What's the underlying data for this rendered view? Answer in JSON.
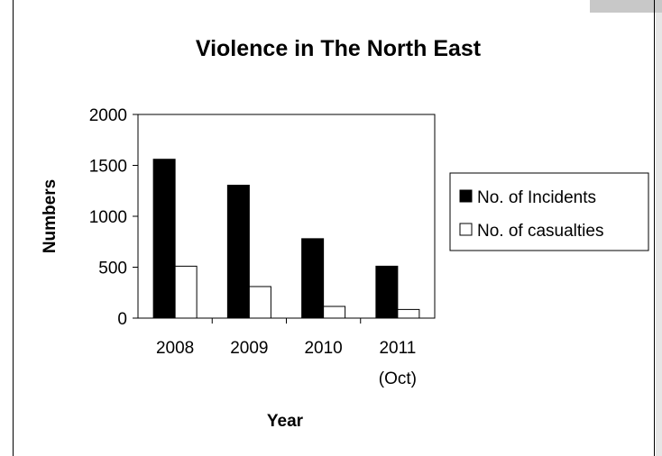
{
  "chart_data": {
    "type": "bar",
    "title": "Violence in The North East",
    "xlabel": "Year",
    "ylabel": "Numbers",
    "categories": [
      [
        "2008"
      ],
      [
        "2009"
      ],
      [
        "2010"
      ],
      [
        "2011",
        "(Oct)"
      ]
    ],
    "series": [
      {
        "name": "No. of Incidents",
        "values": [
          1560,
          1305,
          780,
          510
        ],
        "color": "#000000"
      },
      {
        "name": "No. of casualties",
        "values": [
          510,
          310,
          115,
          85
        ],
        "color": "#ffffff"
      }
    ],
    "ylim": [
      0,
      2000
    ],
    "yticks": [
      0,
      500,
      1000,
      1500,
      2000
    ],
    "grid": false,
    "legend_position": "right"
  }
}
